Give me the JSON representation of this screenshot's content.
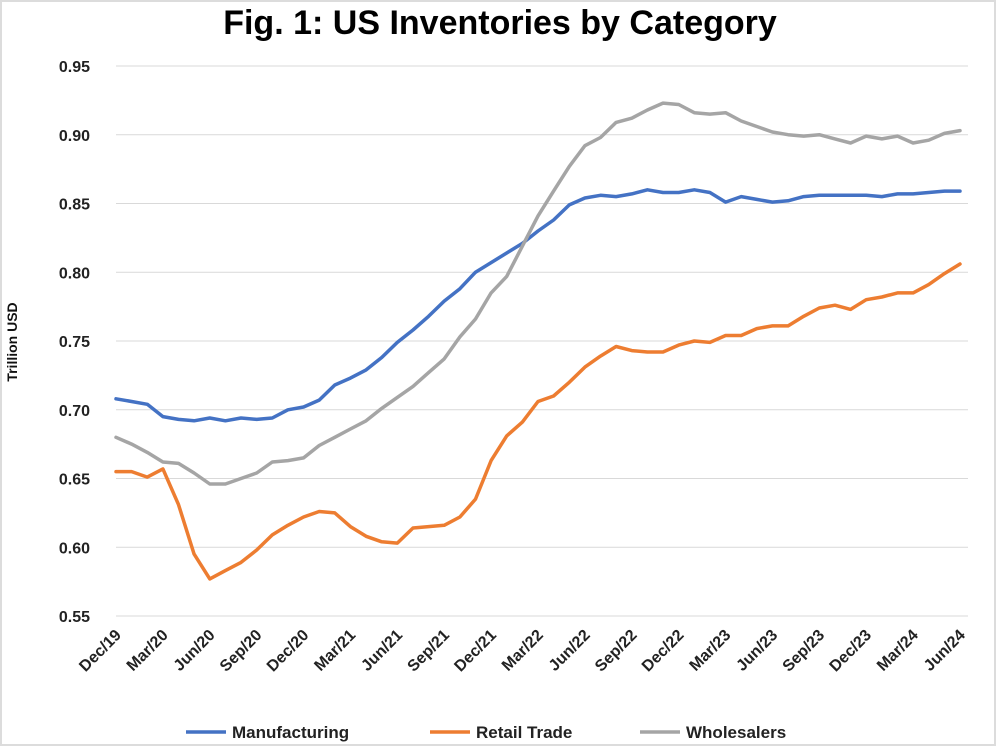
{
  "chart_data": {
    "type": "line",
    "title": "Fig. 1: US Inventories by Category",
    "xlabel": "",
    "ylabel": "Trillion USD",
    "ylim": [
      0.55,
      0.95
    ],
    "yticks": [
      "0.55",
      "0.60",
      "0.65",
      "0.70",
      "0.75",
      "0.80",
      "0.85",
      "0.90",
      "0.95"
    ],
    "x_tick_labels": [
      "Dec/19",
      "Mar/20",
      "Jun/20",
      "Sep/20",
      "Dec/20",
      "Mar/21",
      "Jun/21",
      "Sep/21",
      "Dec/21",
      "Mar/22",
      "Jun/22",
      "Sep/22",
      "Dec/22",
      "Mar/23",
      "Jun/23",
      "Sep/23",
      "Dec/23",
      "Mar/24",
      "Jun/24"
    ],
    "x_start": "Dec/19",
    "x_end": "Jun/24",
    "grid": true,
    "legend_position": "bottom",
    "series": [
      {
        "name": "Manufacturing",
        "color": "#4472C4",
        "values": [
          0.708,
          0.706,
          0.704,
          0.695,
          0.693,
          0.692,
          0.694,
          0.692,
          0.694,
          0.693,
          0.694,
          0.7,
          0.702,
          0.707,
          0.718,
          0.723,
          0.729,
          0.738,
          0.749,
          0.758,
          0.768,
          0.779,
          0.788,
          0.8,
          0.807,
          0.814,
          0.821,
          0.83,
          0.838,
          0.849,
          0.854,
          0.856,
          0.855,
          0.857,
          0.86,
          0.858,
          0.858,
          0.86,
          0.858,
          0.851,
          0.855,
          0.853,
          0.851,
          0.852,
          0.855,
          0.856,
          0.856,
          0.856,
          0.856,
          0.855,
          0.857,
          0.857,
          0.858,
          0.859,
          0.859
        ]
      },
      {
        "name": "Retail Trade",
        "color": "#ED7D31",
        "values": [
          0.655,
          0.655,
          0.651,
          0.657,
          0.631,
          0.595,
          0.577,
          0.583,
          0.589,
          0.598,
          0.609,
          0.616,
          0.622,
          0.626,
          0.625,
          0.615,
          0.608,
          0.604,
          0.603,
          0.614,
          0.615,
          0.616,
          0.622,
          0.635,
          0.663,
          0.681,
          0.691,
          0.706,
          0.71,
          0.72,
          0.731,
          0.739,
          0.746,
          0.743,
          0.742,
          0.742,
          0.747,
          0.75,
          0.749,
          0.754,
          0.754,
          0.759,
          0.761,
          0.761,
          0.768,
          0.774,
          0.776,
          0.773,
          0.78,
          0.782,
          0.785,
          0.785,
          0.791,
          0.799,
          0.806
        ]
      },
      {
        "name": "Wholesalers",
        "color": "#A5A5A5",
        "values": [
          0.68,
          0.675,
          0.669,
          0.662,
          0.661,
          0.654,
          0.646,
          0.646,
          0.65,
          0.654,
          0.662,
          0.663,
          0.665,
          0.674,
          0.68,
          0.686,
          0.692,
          0.701,
          0.709,
          0.717,
          0.727,
          0.737,
          0.753,
          0.766,
          0.785,
          0.797,
          0.819,
          0.841,
          0.859,
          0.877,
          0.892,
          0.898,
          0.909,
          0.912,
          0.918,
          0.923,
          0.922,
          0.916,
          0.915,
          0.916,
          0.91,
          0.906,
          0.902,
          0.9,
          0.899,
          0.9,
          0.897,
          0.894,
          0.899,
          0.897,
          0.899,
          0.894,
          0.896,
          0.901,
          0.903
        ]
      }
    ]
  }
}
